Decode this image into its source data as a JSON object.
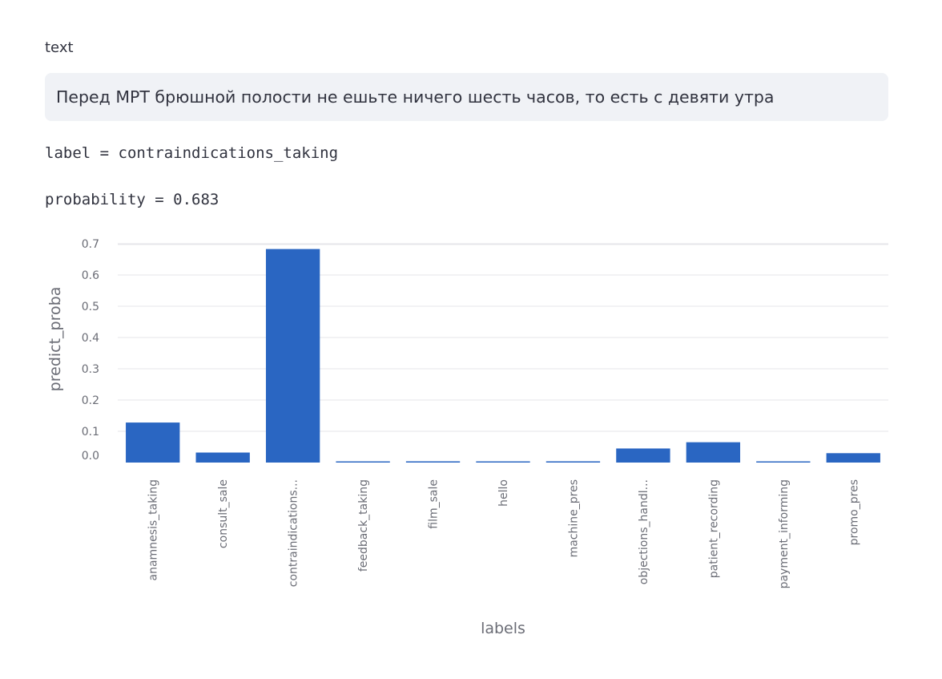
{
  "field_label": "text",
  "input_text": "Перед МРТ брюшной полости не ешьте ничего шесть часов, то есть с девяти утра",
  "result": {
    "label_line": "label = contraindications_taking",
    "probability_line": "probability = 0.683"
  },
  "colors": {
    "bar": "#2a66c2",
    "panel": "#f0f2f6"
  },
  "chart_data": {
    "type": "bar",
    "categories": [
      "anamnesis_taking",
      "consult_sale",
      "contraindications...",
      "feedback_taking",
      "film_sale",
      "hello",
      "machine_pres",
      "objections_handl...",
      "patient_recording",
      "payment_informing",
      "promo_pres"
    ],
    "values": [
      0.128,
      0.032,
      0.683,
      0.002,
      0.004,
      0.002,
      0.004,
      0.045,
      0.065,
      0.002,
      0.03
    ],
    "xlabel": "labels",
    "ylabel": "predict_proba",
    "yticks": [
      "0.0",
      "0.1",
      "0.2",
      "0.3",
      "0.4",
      "0.5",
      "0.6",
      "0.7"
    ],
    "ylim": [
      0,
      0.7
    ],
    "grid": true
  }
}
